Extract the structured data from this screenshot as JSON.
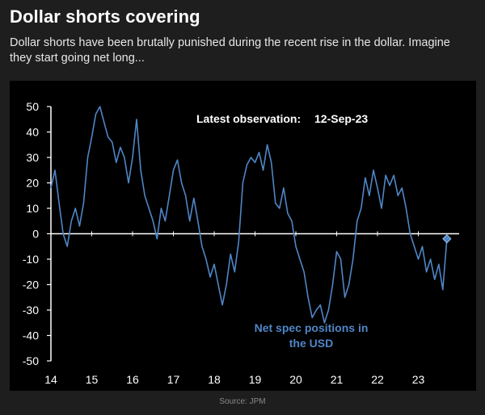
{
  "header": {
    "title": "Dollar shorts covering",
    "subtitle": "Dollar shorts have been brutally punished during the recent rise in the dollar. Imagine they start going net long..."
  },
  "source": "Source: JPM",
  "chart_data": {
    "type": "line",
    "title": "",
    "xlabel": "",
    "ylabel": "",
    "ylim": [
      -50,
      50
    ],
    "xlim": [
      2014,
      2024
    ],
    "yticks": [
      50,
      40,
      30,
      20,
      10,
      0,
      -10,
      -20,
      -30,
      -40,
      -50
    ],
    "xticks": [
      "14",
      "15",
      "16",
      "17",
      "18",
      "19",
      "20",
      "21",
      "22",
      "23"
    ],
    "grid": false,
    "zero_line": true,
    "annotations": {
      "latest_label": "Latest observation:",
      "latest_date": "12-Sep-23",
      "series_label_line1": "Net spec positions in",
      "series_label_line2": "the USD"
    },
    "colors": {
      "line": "#4f86c6",
      "axis": "#ffffff",
      "background": "#000000"
    },
    "series": [
      {
        "name": "Net spec positions in the USD",
        "x": [
          2014.0,
          2014.1,
          2014.2,
          2014.3,
          2014.4,
          2014.5,
          2014.6,
          2014.7,
          2014.8,
          2014.9,
          2015.0,
          2015.1,
          2015.2,
          2015.3,
          2015.4,
          2015.5,
          2015.6,
          2015.7,
          2015.8,
          2015.9,
          2016.0,
          2016.1,
          2016.2,
          2016.3,
          2016.4,
          2016.5,
          2016.6,
          2016.7,
          2016.8,
          2016.9,
          2017.0,
          2017.1,
          2017.2,
          2017.3,
          2017.4,
          2017.5,
          2017.6,
          2017.7,
          2017.8,
          2017.9,
          2018.0,
          2018.1,
          2018.2,
          2018.3,
          2018.4,
          2018.5,
          2018.6,
          2018.7,
          2018.8,
          2018.9,
          2019.0,
          2019.1,
          2019.2,
          2019.3,
          2019.4,
          2019.5,
          2019.6,
          2019.7,
          2019.8,
          2019.9,
          2020.0,
          2020.1,
          2020.2,
          2020.3,
          2020.4,
          2020.5,
          2020.6,
          2020.7,
          2020.8,
          2020.9,
          2021.0,
          2021.1,
          2021.2,
          2021.3,
          2021.4,
          2021.5,
          2021.6,
          2021.7,
          2021.8,
          2021.9,
          2022.0,
          2022.1,
          2022.2,
          2022.3,
          2022.4,
          2022.5,
          2022.6,
          2022.7,
          2022.8,
          2022.9,
          2023.0,
          2023.1,
          2023.2,
          2023.3,
          2023.4,
          2023.5,
          2023.6,
          2023.65,
          2023.7
        ],
        "values": [
          18,
          25,
          12,
          0,
          -5,
          5,
          10,
          3,
          12,
          30,
          38,
          47,
          50,
          44,
          38,
          36,
          28,
          34,
          30,
          20,
          30,
          45,
          25,
          15,
          10,
          5,
          -2,
          10,
          5,
          15,
          25,
          29,
          20,
          15,
          5,
          14,
          5,
          -5,
          -10,
          -17,
          -12,
          -20,
          -28,
          -20,
          -8,
          -15,
          -3,
          20,
          27,
          30,
          28,
          32,
          25,
          35,
          28,
          12,
          10,
          18,
          8,
          5,
          -5,
          -10,
          -15,
          -25,
          -33,
          -30,
          -28,
          -35,
          -30,
          -20,
          -7,
          -10,
          -25,
          -20,
          -10,
          5,
          10,
          22,
          15,
          25,
          18,
          10,
          23,
          19,
          23,
          15,
          18,
          10,
          0,
          -5,
          -10,
          -5,
          -15,
          -10,
          -18,
          -12,
          -22,
          -12,
          -2
        ]
      }
    ],
    "latest_point": {
      "x": 2023.7,
      "y": -2
    }
  }
}
